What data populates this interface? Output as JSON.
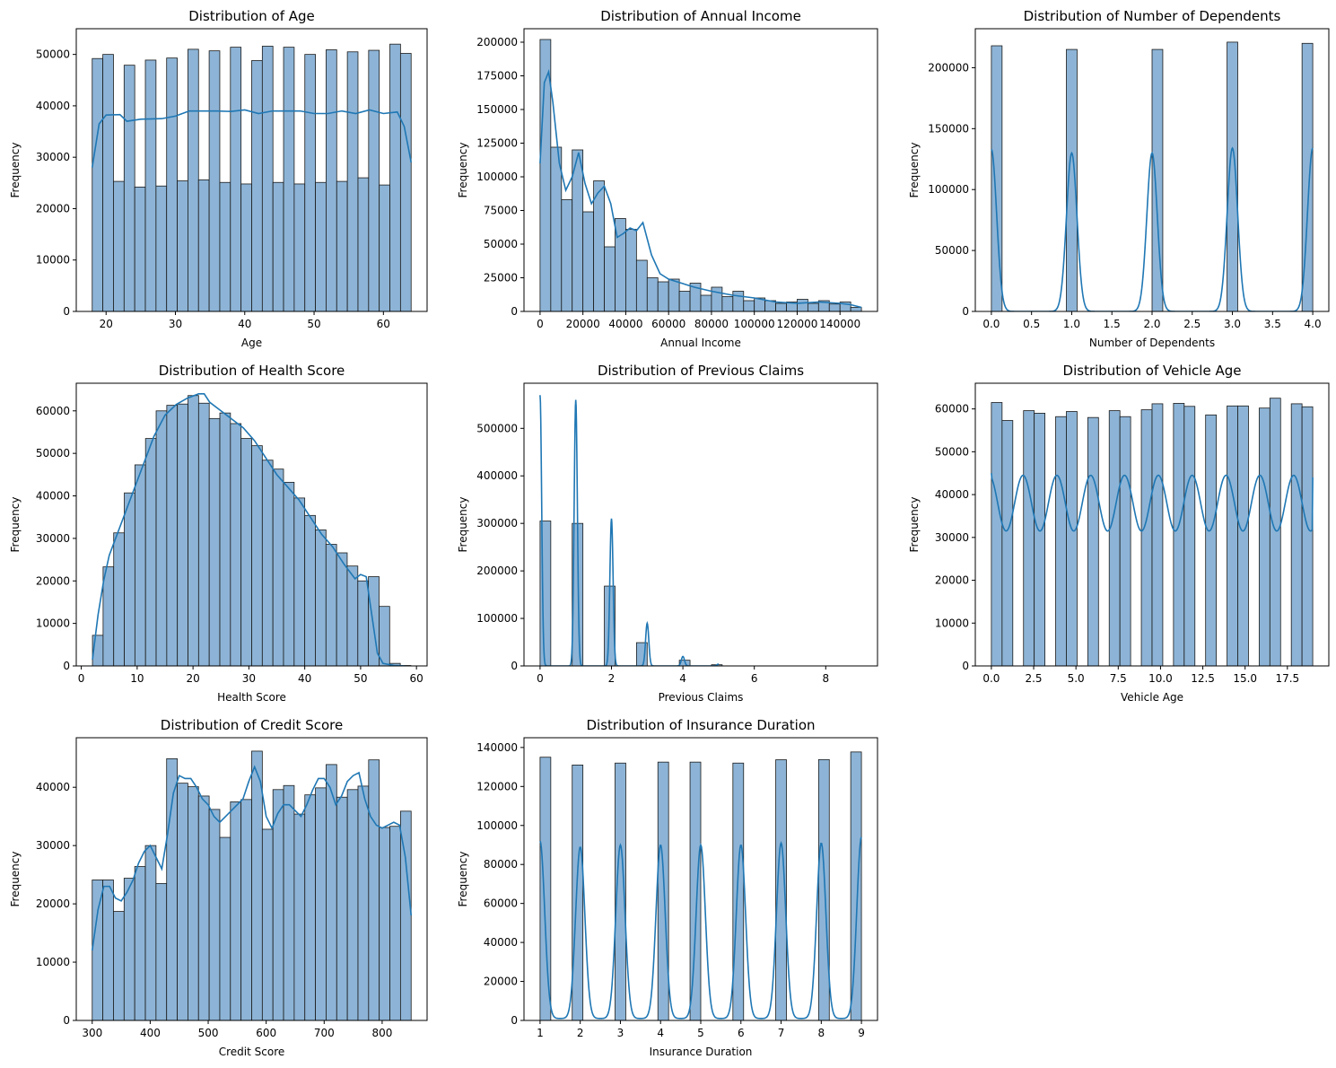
{
  "colors": {
    "bar_fill": "#8db4d6",
    "bar_edge": "#1a1a1a",
    "kde_line": "#1f77b4"
  },
  "chart_data": [
    {
      "type": "bar",
      "title": "Distribution of Age",
      "xlabel": "Age",
      "ylabel": "Frequency",
      "xlim": [
        15.7,
        66.3
      ],
      "ylim": [
        0,
        55000
      ],
      "xticks": [
        20,
        30,
        40,
        50,
        60
      ],
      "xtick_labels": [
        "20",
        "30",
        "40",
        "50",
        "60"
      ],
      "yticks": [
        0,
        10000,
        20000,
        30000,
        40000,
        50000
      ],
      "bin_edges_start": 18,
      "bin_width": 1.5333,
      "values": [
        49200,
        50000,
        25300,
        47900,
        24200,
        48900,
        24400,
        49300,
        25400,
        51000,
        25600,
        50700,
        25100,
        51400,
        24800,
        48800,
        51600,
        25100,
        51400,
        24800,
        50000,
        25100,
        50900,
        25300,
        50500,
        26000,
        50800,
        24600,
        52000,
        50200
      ],
      "kde": {
        "x": [
          18,
          19,
          20,
          22,
          23,
          25,
          28,
          30,
          32,
          34,
          36,
          38,
          40,
          42,
          44,
          46,
          48,
          50,
          52,
          54,
          56,
          58,
          60,
          62,
          63,
          64
        ],
        "y": [
          28000,
          36500,
          38200,
          38300,
          37000,
          37400,
          37500,
          38000,
          39000,
          39000,
          39000,
          38900,
          39200,
          38500,
          39000,
          39000,
          39000,
          38500,
          38500,
          39000,
          38500,
          39200,
          38500,
          38800,
          36000,
          29000
        ]
      }
    },
    {
      "type": "bar",
      "title": "Distribution of Annual Income",
      "xlabel": "Annual Income",
      "ylabel": "Frequency",
      "xlim": [
        -7500,
        157500
      ],
      "ylim": [
        0,
        210000
      ],
      "xticks": [
        0,
        20000,
        40000,
        60000,
        80000,
        100000,
        120000,
        140000
      ],
      "xtick_labels": [
        "0",
        "20000",
        "40000",
        "60000",
        "80000",
        "100000",
        "120000",
        "140000"
      ],
      "yticks": [
        0,
        25000,
        50000,
        75000,
        100000,
        125000,
        150000,
        175000,
        200000
      ],
      "bin_edges_start": 0,
      "bin_width": 5000,
      "values": [
        202000,
        122000,
        83000,
        120000,
        74000,
        97000,
        48000,
        69000,
        61000,
        38000,
        25000,
        22000,
        24000,
        15000,
        21000,
        12000,
        18000,
        11000,
        15000,
        8000,
        10000,
        8000,
        6000,
        7000,
        9000,
        6000,
        8000,
        5500,
        7000,
        3000
      ],
      "kde": {
        "x": [
          0,
          2000,
          4000,
          6000,
          9000,
          12000,
          15000,
          18000,
          21000,
          24000,
          27000,
          30000,
          33000,
          36000,
          39000,
          42000,
          45000,
          48000,
          52000,
          56000,
          60000,
          66000,
          72000,
          80000,
          90000,
          100000,
          110000,
          120000,
          130000,
          140000,
          145000,
          150000
        ],
        "y": [
          110000,
          170000,
          178000,
          155000,
          110000,
          90000,
          100000,
          118000,
          95000,
          80000,
          88000,
          93000,
          80000,
          55000,
          58000,
          62000,
          60000,
          66000,
          42000,
          28000,
          24000,
          21000,
          18000,
          15000,
          12000,
          10000,
          7000,
          6000,
          7000,
          6000,
          5000,
          3000
        ]
      }
    },
    {
      "type": "bar",
      "title": "Distribution of Number of Dependents",
      "xlabel": "Number of Dependents",
      "ylabel": "Frequency",
      "xlim": [
        -0.2,
        4.2
      ],
      "ylim": [
        0,
        232000
      ],
      "xticks": [
        0,
        0.5,
        1,
        1.5,
        2,
        2.5,
        3,
        3.5,
        4
      ],
      "xtick_labels": [
        "0.0",
        "0.5",
        "1.0",
        "1.5",
        "2.0",
        "2.5",
        "3.0",
        "3.5",
        "4.0"
      ],
      "yticks": [
        0,
        50000,
        100000,
        150000,
        200000
      ],
      "bars": [
        {
          "x0": 0.0,
          "x1": 0.1333,
          "value": 218000
        },
        {
          "x0": 0.9333,
          "x1": 1.0667,
          "value": 215000
        },
        {
          "x0": 2.0,
          "x1": 2.1333,
          "value": 215000
        },
        {
          "x0": 2.9333,
          "x1": 3.0667,
          "value": 221000
        },
        {
          "x0": 3.8667,
          "x1": 4.0,
          "value": 220000
        }
      ],
      "kde_peaks": {
        "centers": [
          0,
          1,
          2,
          3,
          4
        ],
        "heights": [
          133000,
          130000,
          130000,
          134000,
          134000
        ],
        "sigma": 0.065
      }
    },
    {
      "type": "bar",
      "title": "Distribution of Health Score",
      "xlabel": "Health Score",
      "ylabel": "Frequency",
      "xlim": [
        -0.9,
        61.9
      ],
      "ylim": [
        0,
        66500
      ],
      "xticks": [
        0,
        10,
        20,
        30,
        40,
        50,
        60
      ],
      "xtick_labels": [
        "0",
        "10",
        "20",
        "30",
        "40",
        "50",
        "60"
      ],
      "yticks": [
        0,
        10000,
        20000,
        30000,
        40000,
        50000,
        60000
      ],
      "bin_edges_start": 2,
      "bin_width": 1.9,
      "values": [
        7200,
        23300,
        31300,
        40700,
        47300,
        53500,
        60000,
        61300,
        61600,
        63600,
        61800,
        58200,
        59500,
        57000,
        53500,
        51800,
        48400,
        46300,
        43200,
        39500,
        35400,
        32000,
        28600,
        26600,
        23500,
        20000,
        21000,
        14000,
        600,
        100
      ],
      "kde": {
        "x": [
          2,
          3,
          4,
          5,
          7,
          9,
          11,
          13,
          15,
          17,
          19,
          21,
          22,
          23,
          25,
          27,
          29,
          31,
          33,
          35,
          37,
          39,
          41,
          43,
          45,
          47,
          49,
          50,
          51,
          52,
          53,
          54,
          56,
          58
        ],
        "y": [
          1500,
          12000,
          20000,
          26000,
          33000,
          40000,
          47000,
          54000,
          59000,
          61500,
          63000,
          64000,
          64000,
          62000,
          60000,
          58000,
          56000,
          53000,
          49000,
          45000,
          42000,
          39000,
          35000,
          31000,
          28000,
          24000,
          20500,
          21500,
          21000,
          12000,
          3000,
          600,
          100,
          0
        ]
      }
    },
    {
      "type": "bar",
      "title": "Distribution of Previous Claims",
      "xlabel": "Previous Claims",
      "ylabel": "Frequency",
      "xlim": [
        -0.45,
        9.45
      ],
      "ylim": [
        0,
        595000
      ],
      "xticks": [
        0,
        2,
        4,
        6,
        8
      ],
      "xtick_labels": [
        "0",
        "2",
        "4",
        "6",
        "8"
      ],
      "yticks": [
        0,
        100000,
        200000,
        300000,
        400000,
        500000
      ],
      "bars": [
        {
          "x0": 0.0,
          "x1": 0.3,
          "value": 305000
        },
        {
          "x0": 0.9,
          "x1": 1.2,
          "value": 300000
        },
        {
          "x0": 1.8,
          "x1": 2.1,
          "value": 168000
        },
        {
          "x0": 2.7,
          "x1": 3.0,
          "value": 49000
        },
        {
          "x0": 3.9,
          "x1": 4.2,
          "value": 12000
        },
        {
          "x0": 4.8,
          "x1": 5.1,
          "value": 2500
        }
      ],
      "kde_peaks": {
        "centers": [
          0,
          1,
          2,
          3,
          4,
          5
        ],
        "heights": [
          570000,
          560000,
          310000,
          90000,
          20000,
          4000
        ],
        "sigma": 0.045
      }
    },
    {
      "type": "bar",
      "title": "Distribution of Vehicle Age",
      "xlabel": "Vehicle Age",
      "ylabel": "Frequency",
      "xlim": [
        -0.95,
        19.95
      ],
      "ylim": [
        0,
        66000
      ],
      "xticks": [
        0,
        2.5,
        5,
        7.5,
        10,
        12.5,
        15,
        17.5
      ],
      "xtick_labels": [
        "0.0",
        "2.5",
        "5.0",
        "7.5",
        "10.0",
        "12.5",
        "15.0",
        "17.5"
      ],
      "yticks": [
        0,
        10000,
        20000,
        30000,
        40000,
        50000,
        60000
      ],
      "bin_edges_start": 0,
      "bin_width": 0.6333,
      "values": [
        61500,
        57300,
        0,
        59600,
        59000,
        0,
        58200,
        59400,
        0,
        58000,
        0,
        59600,
        58200,
        0,
        59800,
        61200,
        0,
        61300,
        60600,
        0,
        58600,
        0,
        60700,
        60700,
        0,
        60200,
        62500,
        0,
        61200,
        60500
      ],
      "kde_wave": {
        "x0": 0,
        "x1": 19,
        "mid": 38000,
        "amp": 6500,
        "cycles": 19,
        "start": 45000,
        "end": 44000
      }
    },
    {
      "type": "bar",
      "title": "Distribution of Credit Score",
      "xlabel": "Credit Score",
      "ylabel": "Frequency",
      "xlim": [
        272.5,
        877.5
      ],
      "ylim": [
        0,
        48500
      ],
      "xticks": [
        300,
        400,
        500,
        600,
        700,
        800
      ],
      "xtick_labels": [
        "300",
        "400",
        "500",
        "600",
        "700",
        "800"
      ],
      "yticks": [
        0,
        10000,
        20000,
        30000,
        40000
      ],
      "bin_edges_start": 300,
      "bin_width": 18.3333,
      "values": [
        24100,
        24100,
        18700,
        24400,
        26400,
        30000,
        23500,
        44900,
        40700,
        40100,
        38500,
        36200,
        31400,
        37500,
        37900,
        46200,
        32800,
        39600,
        40300,
        35400,
        38700,
        39900,
        43900,
        38300,
        39600,
        40200,
        44700,
        33100,
        33300,
        35900
      ],
      "kde": {
        "x": [
          300,
          310,
          320,
          330,
          340,
          350,
          360,
          370,
          380,
          390,
          400,
          410,
          420,
          430,
          440,
          450,
          460,
          470,
          480,
          490,
          500,
          510,
          520,
          540,
          560,
          570,
          580,
          590,
          600,
          610,
          620,
          630,
          640,
          650,
          660,
          670,
          680,
          690,
          700,
          710,
          720,
          730,
          740,
          750,
          760,
          770,
          780,
          790,
          800,
          810,
          820,
          830,
          840,
          850
        ],
        "y": [
          12000,
          19000,
          23000,
          23000,
          21000,
          20500,
          22000,
          24000,
          27000,
          29000,
          30000,
          28000,
          26000,
          32000,
          39000,
          42000,
          41500,
          41500,
          40000,
          38000,
          37000,
          35000,
          34000,
          36000,
          38000,
          41000,
          43500,
          41000,
          35000,
          33000,
          35500,
          37000,
          37000,
          36000,
          35000,
          37000,
          39500,
          41500,
          41500,
          40000,
          37000,
          38500,
          41000,
          42000,
          42500,
          38000,
          35000,
          33500,
          33000,
          33500,
          34000,
          33500,
          28000,
          18000
        ]
      }
    },
    {
      "type": "bar",
      "title": "Distribution of Insurance Duration",
      "xlabel": "Insurance Duration",
      "ylabel": "Frequency",
      "xlim": [
        0.6,
        9.4
      ],
      "ylim": [
        0,
        145000
      ],
      "xticks": [
        1,
        2,
        3,
        4,
        5,
        6,
        7,
        8,
        9
      ],
      "xtick_labels": [
        "1",
        "2",
        "3",
        "4",
        "5",
        "6",
        "7",
        "8",
        "9"
      ],
      "yticks": [
        0,
        20000,
        40000,
        60000,
        80000,
        100000,
        120000,
        140000
      ],
      "bars": [
        {
          "x0": 1.0,
          "x1": 1.2667,
          "value": 135000
        },
        {
          "x0": 1.8,
          "x1": 2.0667,
          "value": 131000
        },
        {
          "x0": 2.8667,
          "x1": 3.1333,
          "value": 132000
        },
        {
          "x0": 3.9333,
          "x1": 4.2,
          "value": 132500
        },
        {
          "x0": 4.7333,
          "x1": 5.0,
          "value": 132500
        },
        {
          "x0": 5.8,
          "x1": 6.0667,
          "value": 132000
        },
        {
          "x0": 6.8667,
          "x1": 7.1333,
          "value": 133700
        },
        {
          "x0": 7.9333,
          "x1": 8.2,
          "value": 133800
        },
        {
          "x0": 8.7333,
          "x1": 9.0,
          "value": 137700
        }
      ],
      "kde_peaks": {
        "centers": [
          1,
          2,
          3,
          4,
          5,
          6,
          7,
          8,
          9
        ],
        "heights": [
          91000,
          88000,
          89000,
          89000,
          89000,
          89000,
          90000,
          90000,
          93000
        ],
        "sigma": 0.115,
        "baseline": 1000
      }
    }
  ]
}
